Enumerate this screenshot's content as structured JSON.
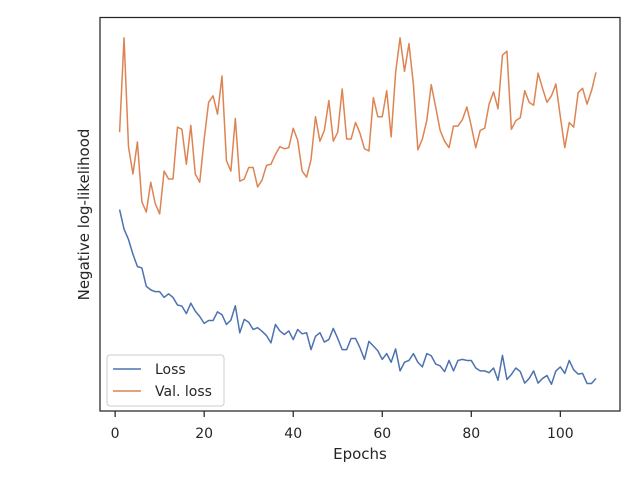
{
  "chart_data": {
    "type": "line",
    "xlabel": "Epochs",
    "ylabel": "Negative log-likelihood",
    "xlim": [
      -3.4,
      113.4
    ],
    "ylim": [
      0,
      100
    ],
    "xticks": [
      0,
      20,
      40,
      60,
      80,
      100
    ],
    "xtick_labels": [
      "0",
      "20",
      "40",
      "60",
      "80",
      "100"
    ],
    "y_tick_labels_shown": false,
    "grid": false,
    "legend_position": "lower-left",
    "x": [
      1,
      2,
      3,
      4,
      5,
      6,
      7,
      8,
      9,
      10,
      11,
      12,
      13,
      14,
      15,
      16,
      17,
      18,
      19,
      20,
      21,
      22,
      23,
      24,
      25,
      26,
      27,
      28,
      29,
      30,
      31,
      32,
      33,
      34,
      35,
      36,
      37,
      38,
      39,
      40,
      41,
      42,
      43,
      44,
      45,
      46,
      47,
      48,
      49,
      50,
      51,
      52,
      53,
      54,
      55,
      56,
      57,
      58,
      59,
      60,
      61,
      62,
      63,
      64,
      65,
      66,
      67,
      68,
      69,
      70,
      71,
      72,
      73,
      74,
      75,
      76,
      77,
      78,
      79,
      80,
      81,
      82,
      83,
      84,
      85,
      86,
      87,
      88,
      89,
      90,
      91,
      92,
      93,
      94,
      95,
      96,
      97,
      98,
      99,
      100,
      101,
      102,
      103,
      104,
      105,
      106,
      107,
      108
    ],
    "series": [
      {
        "name": "Loss",
        "color": "#4c72b0",
        "values": [
          51.5,
          46.1,
          43.2,
          39.1,
          35.7,
          35.3,
          30.2,
          29.2,
          28.7,
          28.7,
          27.1,
          28.1,
          27.1,
          25.0,
          24.7,
          22.6,
          25.5,
          23.3,
          21.8,
          19.9,
          20.7,
          20.7,
          23.1,
          22.3,
          19.6,
          20.8,
          24.8,
          17.3,
          21.0,
          20.2,
          18.2,
          18.7,
          17.7,
          16.5,
          14.5,
          19.6,
          17.8,
          16.8,
          17.8,
          15.4,
          18.2,
          17.0,
          17.3,
          12.6,
          16.3,
          17.3,
          14.7,
          15.4,
          18.5,
          15.7,
          12.6,
          12.6,
          15.7,
          15.7,
          13.1,
          9.9,
          14.9,
          13.6,
          12.3,
          9.9,
          11.5,
          9.1,
          12.8,
          6.7,
          9.1,
          9.6,
          11.5,
          9.1,
          7.8,
          11.5,
          10.9,
          8.6,
          8.1,
          6.5,
          9.6,
          6.7,
          9.6,
          9.9,
          9.6,
          9.6,
          7.5,
          6.7,
          6.7,
          6.2,
          7.5,
          4.1,
          11.0,
          4.3,
          5.7,
          7.5,
          6.5,
          3.3,
          4.6,
          6.7,
          3.3,
          4.6,
          5.4,
          3.0,
          6.7,
          7.8,
          6.0,
          9.6,
          7.0,
          5.8,
          6.0,
          3.2,
          3.2,
          4.6
        ]
      },
      {
        "name": "Val. loss",
        "color": "#dd8452",
        "values": [
          73.0,
          99.2,
          69.0,
          61.4,
          70.3,
          53.7,
          50.8,
          59.1,
          53.2,
          50.3,
          62.2,
          60.0,
          60.0,
          74.4,
          73.8,
          64.1,
          74.9,
          61.4,
          59.1,
          71.1,
          81.3,
          83.1,
          78.0,
          88.6,
          65.1,
          62.2,
          76.8,
          59.4,
          60.0,
          63.2,
          63.2,
          57.8,
          59.7,
          63.8,
          64.1,
          66.8,
          69.0,
          68.4,
          68.7,
          74.1,
          70.8,
          62.2,
          60.5,
          65.4,
          77.3,
          70.5,
          73.5,
          81.8,
          70.5,
          73.0,
          85.0,
          71.1,
          71.1,
          75.7,
          72.7,
          68.4,
          67.8,
          82.6,
          77.3,
          77.3,
          84.5,
          71.7,
          89.6,
          99.2,
          89.9,
          97.6,
          86.2,
          68.1,
          71.1,
          76.2,
          86.2,
          80.0,
          73.5,
          70.5,
          68.7,
          74.7,
          74.7,
          76.5,
          80.0,
          74.7,
          68.7,
          73.5,
          74.1,
          80.8,
          84.2,
          79.5,
          94.4,
          95.5,
          73.8,
          76.2,
          77.0,
          84.5,
          81.3,
          80.5,
          89.4,
          85.2,
          81.3,
          83.1,
          86.4,
          77.3,
          68.7,
          75.7,
          74.4,
          84.0,
          85.2,
          80.8,
          84.5,
          89.6
        ]
      }
    ]
  }
}
